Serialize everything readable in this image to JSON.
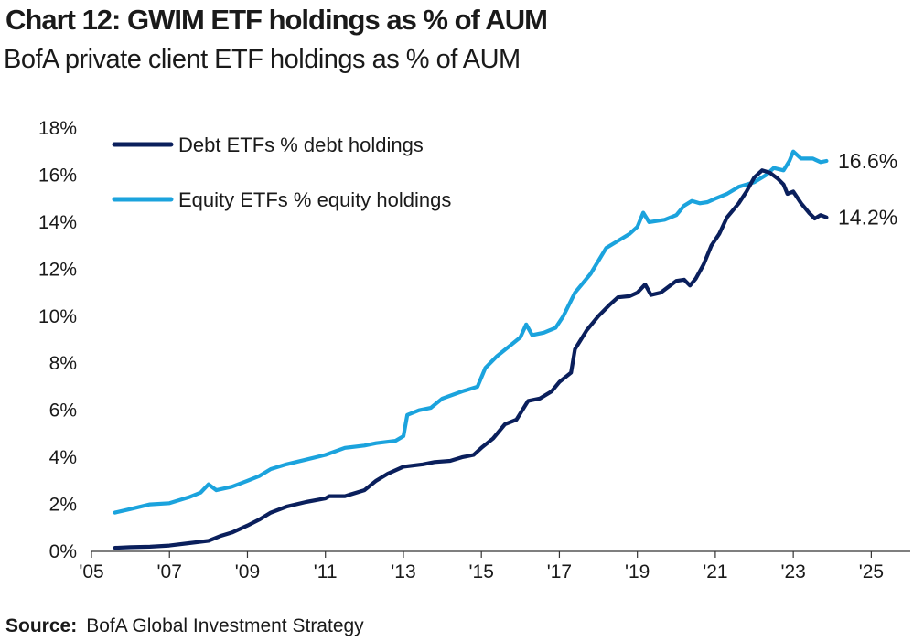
{
  "title": "Chart 12: GWIM ETF holdings as % of AUM",
  "subtitle": "BofA private client ETF holdings as % of AUM",
  "source": {
    "label": "Source:",
    "text": "BofA Global Investment Strategy"
  },
  "chart_data": {
    "type": "line",
    "title": "Chart 12: GWIM ETF holdings as % of AUM",
    "subtitle": "BofA private client ETF holdings as % of AUM",
    "xlabel": "",
    "ylabel": "",
    "xlim": [
      2005,
      2026
    ],
    "ylim": [
      0,
      18
    ],
    "x_ticks": [
      2005,
      2007,
      2009,
      2011,
      2013,
      2015,
      2017,
      2019,
      2021,
      2023,
      2025
    ],
    "x_tick_labels": [
      "'05",
      "'07",
      "'09",
      "'11",
      "'13",
      "'15",
      "'17",
      "'19",
      "'21",
      "'23",
      "'25"
    ],
    "y_ticks": [
      0,
      2,
      4,
      6,
      8,
      10,
      12,
      14,
      16,
      18
    ],
    "y_tick_labels": [
      "0%",
      "2%",
      "4%",
      "6%",
      "8%",
      "10%",
      "12%",
      "14%",
      "16%",
      "18%"
    ],
    "grid": false,
    "legend_position": "top-left",
    "series": [
      {
        "name": "Debt ETFs % debt holdings",
        "color": "#0a1f5c",
        "end_label": "14.2%",
        "points": [
          [
            2005.6,
            0.15
          ],
          [
            2006.0,
            0.18
          ],
          [
            2006.5,
            0.2
          ],
          [
            2007.0,
            0.25
          ],
          [
            2007.5,
            0.35
          ],
          [
            2008.0,
            0.45
          ],
          [
            2008.3,
            0.65
          ],
          [
            2008.6,
            0.8
          ],
          [
            2009.0,
            1.1
          ],
          [
            2009.3,
            1.35
          ],
          [
            2009.6,
            1.65
          ],
          [
            2010.0,
            1.9
          ],
          [
            2010.5,
            2.1
          ],
          [
            2011.0,
            2.25
          ],
          [
            2011.1,
            2.35
          ],
          [
            2011.5,
            2.35
          ],
          [
            2012.0,
            2.6
          ],
          [
            2012.3,
            3.0
          ],
          [
            2012.6,
            3.3
          ],
          [
            2013.0,
            3.6
          ],
          [
            2013.5,
            3.7
          ],
          [
            2013.8,
            3.8
          ],
          [
            2014.2,
            3.85
          ],
          [
            2014.5,
            4.0
          ],
          [
            2014.8,
            4.1
          ],
          [
            2015.0,
            4.4
          ],
          [
            2015.3,
            4.8
          ],
          [
            2015.6,
            5.4
          ],
          [
            2015.9,
            5.6
          ],
          [
            2016.2,
            6.4
          ],
          [
            2016.5,
            6.5
          ],
          [
            2016.8,
            6.8
          ],
          [
            2017.0,
            7.2
          ],
          [
            2017.3,
            7.6
          ],
          [
            2017.4,
            8.6
          ],
          [
            2017.7,
            9.4
          ],
          [
            2018.0,
            10.0
          ],
          [
            2018.3,
            10.5
          ],
          [
            2018.5,
            10.8
          ],
          [
            2018.8,
            10.85
          ],
          [
            2019.0,
            11.0
          ],
          [
            2019.2,
            11.35
          ],
          [
            2019.35,
            10.9
          ],
          [
            2019.6,
            11.0
          ],
          [
            2020.0,
            11.5
          ],
          [
            2020.2,
            11.55
          ],
          [
            2020.35,
            11.3
          ],
          [
            2020.5,
            11.6
          ],
          [
            2020.7,
            12.2
          ],
          [
            2020.9,
            13.0
          ],
          [
            2021.1,
            13.5
          ],
          [
            2021.3,
            14.2
          ],
          [
            2021.6,
            14.8
          ],
          [
            2021.8,
            15.3
          ],
          [
            2022.0,
            15.9
          ],
          [
            2022.2,
            16.2
          ],
          [
            2022.4,
            16.1
          ],
          [
            2022.6,
            15.85
          ],
          [
            2022.75,
            15.6
          ],
          [
            2022.85,
            15.2
          ],
          [
            2023.0,
            15.3
          ],
          [
            2023.2,
            14.8
          ],
          [
            2023.4,
            14.4
          ],
          [
            2023.55,
            14.15
          ],
          [
            2023.7,
            14.3
          ],
          [
            2023.85,
            14.2
          ]
        ]
      },
      {
        "name": "Equity ETFs % equity holdings",
        "color": "#1ba3dd",
        "end_label": "16.6%",
        "points": [
          [
            2005.6,
            1.65
          ],
          [
            2006.0,
            1.8
          ],
          [
            2006.5,
            2.0
          ],
          [
            2007.0,
            2.05
          ],
          [
            2007.5,
            2.3
          ],
          [
            2007.8,
            2.5
          ],
          [
            2008.0,
            2.85
          ],
          [
            2008.2,
            2.6
          ],
          [
            2008.6,
            2.75
          ],
          [
            2009.0,
            3.0
          ],
          [
            2009.3,
            3.2
          ],
          [
            2009.6,
            3.5
          ],
          [
            2010.0,
            3.7
          ],
          [
            2010.5,
            3.9
          ],
          [
            2011.0,
            4.1
          ],
          [
            2011.5,
            4.4
          ],
          [
            2012.0,
            4.5
          ],
          [
            2012.3,
            4.6
          ],
          [
            2012.8,
            4.7
          ],
          [
            2013.0,
            4.9
          ],
          [
            2013.1,
            5.8
          ],
          [
            2013.4,
            6.0
          ],
          [
            2013.7,
            6.1
          ],
          [
            2014.0,
            6.5
          ],
          [
            2014.5,
            6.8
          ],
          [
            2014.9,
            7.0
          ],
          [
            2015.1,
            7.8
          ],
          [
            2015.4,
            8.3
          ],
          [
            2015.7,
            8.7
          ],
          [
            2016.0,
            9.1
          ],
          [
            2016.15,
            9.65
          ],
          [
            2016.3,
            9.2
          ],
          [
            2016.6,
            9.3
          ],
          [
            2016.9,
            9.5
          ],
          [
            2017.1,
            10.0
          ],
          [
            2017.4,
            11.0
          ],
          [
            2017.8,
            11.8
          ],
          [
            2018.2,
            12.9
          ],
          [
            2018.5,
            13.2
          ],
          [
            2018.8,
            13.5
          ],
          [
            2019.0,
            13.8
          ],
          [
            2019.15,
            14.4
          ],
          [
            2019.3,
            14.0
          ],
          [
            2019.7,
            14.1
          ],
          [
            2020.0,
            14.3
          ],
          [
            2020.2,
            14.7
          ],
          [
            2020.4,
            14.9
          ],
          [
            2020.6,
            14.8
          ],
          [
            2020.8,
            14.85
          ],
          [
            2021.0,
            15.0
          ],
          [
            2021.3,
            15.2
          ],
          [
            2021.6,
            15.5
          ],
          [
            2022.0,
            15.7
          ],
          [
            2022.3,
            16.0
          ],
          [
            2022.5,
            16.3
          ],
          [
            2022.75,
            16.2
          ],
          [
            2022.9,
            16.6
          ],
          [
            2023.0,
            17.0
          ],
          [
            2023.2,
            16.7
          ],
          [
            2023.5,
            16.7
          ],
          [
            2023.7,
            16.55
          ],
          [
            2023.85,
            16.6
          ]
        ]
      }
    ]
  }
}
